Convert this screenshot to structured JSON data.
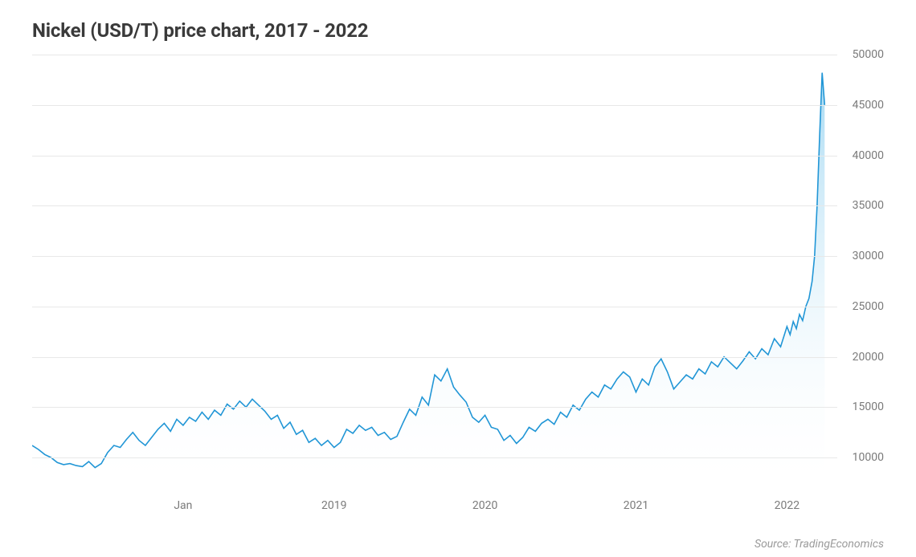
{
  "chart": {
    "type": "area",
    "title": "Nickel (USD/T) price chart, 2017 - 2022",
    "title_fontsize": 24,
    "title_color": "#3a3a3a",
    "source_text": "Source: TradingEconomics",
    "source_color": "#9a9a9a",
    "background_color": "#ffffff",
    "grid_color": "#e8e8e8",
    "line_color": "#2196d6",
    "line_width": 1.6,
    "fill_top_color": "#7fc9ed",
    "fill_top_opacity": 0.7,
    "fill_bottom_color": "#ffffff",
    "fill_bottom_opacity": 0.0,
    "axis_label_color": "#7a7a7a",
    "axis_label_fontsize": 14,
    "x_range": {
      "min": 0,
      "max": 64
    },
    "y_range": {
      "min": 6500,
      "max": 50000
    },
    "y_ticks": [
      10000,
      15000,
      20000,
      25000,
      30000,
      35000,
      40000,
      45000,
      50000
    ],
    "x_ticks": [
      {
        "x": 12,
        "label": "Jan"
      },
      {
        "x": 24,
        "label": "2019"
      },
      {
        "x": 36,
        "label": "2020"
      },
      {
        "x": 48,
        "label": "2021"
      },
      {
        "x": 60,
        "label": "2022"
      }
    ],
    "series": [
      {
        "x": 0,
        "y": 11200
      },
      {
        "x": 0.5,
        "y": 10800
      },
      {
        "x": 1,
        "y": 10300
      },
      {
        "x": 1.5,
        "y": 10000
      },
      {
        "x": 2,
        "y": 9500
      },
      {
        "x": 2.5,
        "y": 9300
      },
      {
        "x": 3,
        "y": 9400
      },
      {
        "x": 3.5,
        "y": 9200
      },
      {
        "x": 4,
        "y": 9100
      },
      {
        "x": 4.5,
        "y": 9600
      },
      {
        "x": 5,
        "y": 9000
      },
      {
        "x": 5.5,
        "y": 9400
      },
      {
        "x": 6,
        "y": 10500
      },
      {
        "x": 6.5,
        "y": 11200
      },
      {
        "x": 7,
        "y": 11000
      },
      {
        "x": 7.5,
        "y": 11800
      },
      {
        "x": 8,
        "y": 12500
      },
      {
        "x": 8.5,
        "y": 11700
      },
      {
        "x": 9,
        "y": 11200
      },
      {
        "x": 9.5,
        "y": 12000
      },
      {
        "x": 10,
        "y": 12800
      },
      {
        "x": 10.5,
        "y": 13400
      },
      {
        "x": 11,
        "y": 12600
      },
      {
        "x": 11.5,
        "y": 13800
      },
      {
        "x": 12,
        "y": 13200
      },
      {
        "x": 12.5,
        "y": 14000
      },
      {
        "x": 13,
        "y": 13600
      },
      {
        "x": 13.5,
        "y": 14500
      },
      {
        "x": 14,
        "y": 13800
      },
      {
        "x": 14.5,
        "y": 14700
      },
      {
        "x": 15,
        "y": 14200
      },
      {
        "x": 15.5,
        "y": 15300
      },
      {
        "x": 16,
        "y": 14800
      },
      {
        "x": 16.5,
        "y": 15600
      },
      {
        "x": 17,
        "y": 15000
      },
      {
        "x": 17.5,
        "y": 15800
      },
      {
        "x": 18,
        "y": 15200
      },
      {
        "x": 18.5,
        "y": 14600
      },
      {
        "x": 19,
        "y": 13800
      },
      {
        "x": 19.5,
        "y": 14200
      },
      {
        "x": 20,
        "y": 12900
      },
      {
        "x": 20.5,
        "y": 13500
      },
      {
        "x": 21,
        "y": 12300
      },
      {
        "x": 21.5,
        "y": 12700
      },
      {
        "x": 22,
        "y": 11500
      },
      {
        "x": 22.5,
        "y": 11900
      },
      {
        "x": 23,
        "y": 11200
      },
      {
        "x": 23.5,
        "y": 11700
      },
      {
        "x": 24,
        "y": 11000
      },
      {
        "x": 24.5,
        "y": 11500
      },
      {
        "x": 25,
        "y": 12800
      },
      {
        "x": 25.5,
        "y": 12400
      },
      {
        "x": 26,
        "y": 13200
      },
      {
        "x": 26.5,
        "y": 12700
      },
      {
        "x": 27,
        "y": 13000
      },
      {
        "x": 27.5,
        "y": 12200
      },
      {
        "x": 28,
        "y": 12500
      },
      {
        "x": 28.5,
        "y": 11800
      },
      {
        "x": 29,
        "y": 12100
      },
      {
        "x": 29.5,
        "y": 13500
      },
      {
        "x": 30,
        "y": 14800
      },
      {
        "x": 30.5,
        "y": 14200
      },
      {
        "x": 31,
        "y": 16000
      },
      {
        "x": 31.5,
        "y": 15200
      },
      {
        "x": 32,
        "y": 18200
      },
      {
        "x": 32.5,
        "y": 17600
      },
      {
        "x": 33,
        "y": 18800
      },
      {
        "x": 33.5,
        "y": 17000
      },
      {
        "x": 34,
        "y": 16200
      },
      {
        "x": 34.5,
        "y": 15500
      },
      {
        "x": 35,
        "y": 14000
      },
      {
        "x": 35.5,
        "y": 13500
      },
      {
        "x": 36,
        "y": 14200
      },
      {
        "x": 36.5,
        "y": 13000
      },
      {
        "x": 37,
        "y": 12800
      },
      {
        "x": 37.5,
        "y": 11700
      },
      {
        "x": 38,
        "y": 12200
      },
      {
        "x": 38.5,
        "y": 11400
      },
      {
        "x": 39,
        "y": 12000
      },
      {
        "x": 39.5,
        "y": 13000
      },
      {
        "x": 40,
        "y": 12600
      },
      {
        "x": 40.5,
        "y": 13400
      },
      {
        "x": 41,
        "y": 13800
      },
      {
        "x": 41.5,
        "y": 13300
      },
      {
        "x": 42,
        "y": 14500
      },
      {
        "x": 42.5,
        "y": 14000
      },
      {
        "x": 43,
        "y": 15200
      },
      {
        "x": 43.5,
        "y": 14700
      },
      {
        "x": 44,
        "y": 15800
      },
      {
        "x": 44.5,
        "y": 16500
      },
      {
        "x": 45,
        "y": 16000
      },
      {
        "x": 45.5,
        "y": 17200
      },
      {
        "x": 46,
        "y": 16800
      },
      {
        "x": 46.5,
        "y": 17800
      },
      {
        "x": 47,
        "y": 18500
      },
      {
        "x": 47.5,
        "y": 18000
      },
      {
        "x": 48,
        "y": 16500
      },
      {
        "x": 48.5,
        "y": 17800
      },
      {
        "x": 49,
        "y": 17200
      },
      {
        "x": 49.5,
        "y": 19000
      },
      {
        "x": 50,
        "y": 19800
      },
      {
        "x": 50.5,
        "y": 18500
      },
      {
        "x": 51,
        "y": 16800
      },
      {
        "x": 51.5,
        "y": 17500
      },
      {
        "x": 52,
        "y": 18200
      },
      {
        "x": 52.5,
        "y": 17800
      },
      {
        "x": 53,
        "y": 18800
      },
      {
        "x": 53.5,
        "y": 18300
      },
      {
        "x": 54,
        "y": 19500
      },
      {
        "x": 54.5,
        "y": 19000
      },
      {
        "x": 55,
        "y": 20000
      },
      {
        "x": 55.5,
        "y": 19400
      },
      {
        "x": 56,
        "y": 18800
      },
      {
        "x": 56.5,
        "y": 19600
      },
      {
        "x": 57,
        "y": 20500
      },
      {
        "x": 57.5,
        "y": 19800
      },
      {
        "x": 58,
        "y": 20800
      },
      {
        "x": 58.5,
        "y": 20200
      },
      {
        "x": 59,
        "y": 21800
      },
      {
        "x": 59.5,
        "y": 21000
      },
      {
        "x": 60,
        "y": 23000
      },
      {
        "x": 60.25,
        "y": 22200
      },
      {
        "x": 60.5,
        "y": 23500
      },
      {
        "x": 60.75,
        "y": 22800
      },
      {
        "x": 61,
        "y": 24200
      },
      {
        "x": 61.25,
        "y": 23600
      },
      {
        "x": 61.5,
        "y": 25000
      },
      {
        "x": 61.75,
        "y": 25800
      },
      {
        "x": 62,
        "y": 27500
      },
      {
        "x": 62.2,
        "y": 30000
      },
      {
        "x": 62.4,
        "y": 35000
      },
      {
        "x": 62.6,
        "y": 42000
      },
      {
        "x": 62.8,
        "y": 48200
      },
      {
        "x": 63,
        "y": 45000
      }
    ]
  }
}
